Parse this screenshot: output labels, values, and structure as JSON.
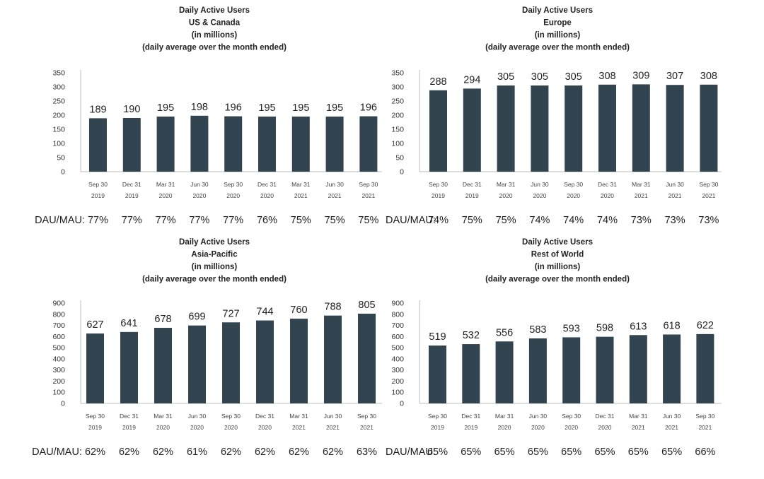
{
  "chart_data": [
    {
      "type": "bar",
      "title": [
        "Daily Active Users",
        "US & Canada",
        "(in millions)",
        "(daily average over the month ended)"
      ],
      "categories": [
        [
          "Sep 30",
          "2019"
        ],
        [
          "Dec 31",
          "2019"
        ],
        [
          "Mar 31",
          "2020"
        ],
        [
          "Jun 30",
          "2020"
        ],
        [
          "Sep 30",
          "2020"
        ],
        [
          "Dec 31",
          "2020"
        ],
        [
          "Mar 31",
          "2021"
        ],
        [
          "Jun 30",
          "2021"
        ],
        [
          "Sep 30",
          "2021"
        ]
      ],
      "values": [
        189,
        190,
        195,
        198,
        196,
        195,
        195,
        195,
        196
      ],
      "ylim": [
        0,
        350
      ],
      "yticks": [
        0,
        50,
        100,
        150,
        200,
        250,
        300,
        350
      ],
      "bar_color": "#334451",
      "ratio_prefix": "DAU/MAU:",
      "ratios": [
        "77%",
        "77%",
        "77%",
        "77%",
        "77%",
        "76%",
        "75%",
        "75%",
        "75%"
      ]
    },
    {
      "type": "bar",
      "title": [
        "Daily Active Users",
        "Europe",
        "(in millions)",
        "(daily average over the month ended)"
      ],
      "categories": [
        [
          "Sep 30",
          "2019"
        ],
        [
          "Dec 31",
          "2019"
        ],
        [
          "Mar 31",
          "2020"
        ],
        [
          "Jun 30",
          "2020"
        ],
        [
          "Sep 30",
          "2020"
        ],
        [
          "Dec 31",
          "2020"
        ],
        [
          "Mar 31",
          "2021"
        ],
        [
          "Jun 30",
          "2021"
        ],
        [
          "Sep 30",
          "2021"
        ]
      ],
      "values": [
        288,
        294,
        305,
        305,
        305,
        308,
        309,
        307,
        308
      ],
      "ylim": [
        0,
        350
      ],
      "yticks": [
        0,
        50,
        100,
        150,
        200,
        250,
        300,
        350
      ],
      "bar_color": "#334451",
      "ratio_prefix": "DAU/MAU:",
      "ratios": [
        "74%",
        "75%",
        "75%",
        "74%",
        "74%",
        "74%",
        "73%",
        "73%",
        "73%"
      ]
    },
    {
      "type": "bar",
      "title": [
        "Daily Active Users",
        "Asia-Pacific",
        "(in millions)",
        "(daily average over the month ended)"
      ],
      "categories": [
        [
          "Sep 30",
          "2019"
        ],
        [
          "Dec 31",
          "2019"
        ],
        [
          "Mar 31",
          "2020"
        ],
        [
          "Jun 30",
          "2020"
        ],
        [
          "Sep 30",
          "2020"
        ],
        [
          "Dec 31",
          "2020"
        ],
        [
          "Mar 31",
          "2021"
        ],
        [
          "Jun 30",
          "2021"
        ],
        [
          "Sep 30",
          "2021"
        ]
      ],
      "values": [
        627,
        641,
        678,
        699,
        727,
        744,
        760,
        788,
        805
      ],
      "ylim": [
        0,
        900
      ],
      "yticks": [
        0,
        100,
        200,
        300,
        400,
        500,
        600,
        700,
        800,
        900
      ],
      "bar_color": "#334451",
      "ratio_prefix": "DAU/MAU:",
      "ratios": [
        "62%",
        "62%",
        "62%",
        "61%",
        "62%",
        "62%",
        "62%",
        "62%",
        "63%"
      ]
    },
    {
      "type": "bar",
      "title": [
        "Daily Active Users",
        "Rest of World",
        "(in millions)",
        "(daily average over the month ended)"
      ],
      "categories": [
        [
          "Sep 30",
          "2019"
        ],
        [
          "Dec 31",
          "2019"
        ],
        [
          "Mar 31",
          "2020"
        ],
        [
          "Jun 30",
          "2020"
        ],
        [
          "Sep 30",
          "2020"
        ],
        [
          "Dec 31",
          "2020"
        ],
        [
          "Mar 31",
          "2021"
        ],
        [
          "Jun 30",
          "2021"
        ],
        [
          "Sep 30",
          "2021"
        ]
      ],
      "values": [
        519,
        532,
        556,
        583,
        593,
        598,
        613,
        618,
        622
      ],
      "ylim": [
        0,
        900
      ],
      "yticks": [
        0,
        100,
        200,
        300,
        400,
        500,
        600,
        700,
        800,
        900
      ],
      "bar_color": "#334451",
      "ratio_prefix": "DAU/MAU:",
      "ratios": [
        "65%",
        "65%",
        "65%",
        "65%",
        "65%",
        "65%",
        "65%",
        "65%",
        "66%"
      ]
    }
  ]
}
